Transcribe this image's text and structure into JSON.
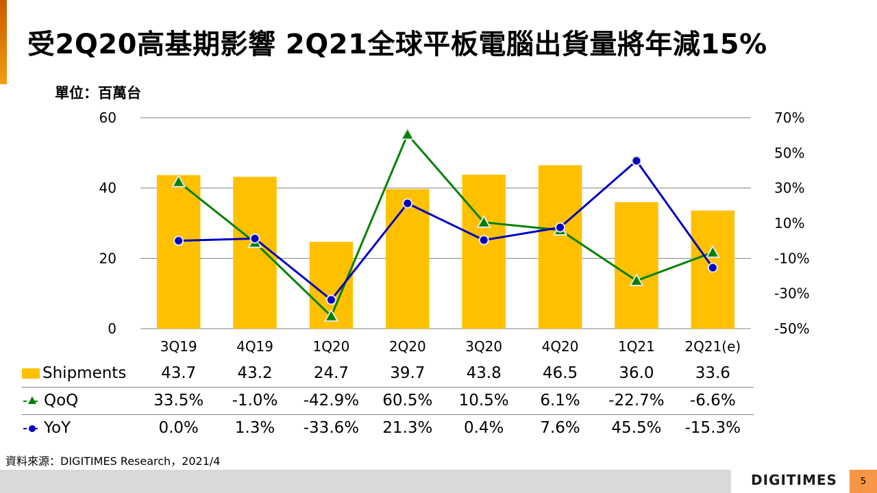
{
  "slide": {
    "title": "受2Q20高基期影響  2Q21全球平板電腦出貨量將年減15%",
    "unit_label": "單位：百萬台",
    "source": "資料來源：DIGITIMES Research，2021/4",
    "logo": "DIGITIMES",
    "page_number": "5"
  },
  "colors": {
    "bar": "#ffc000",
    "qoq": "#008000",
    "yoy": "#0000c0",
    "accent": "#f79646",
    "gridline": "#808080"
  },
  "chart_data": {
    "type": "bar",
    "title": "受2Q20高基期影響  2Q21全球平板電腦出貨量將年減15%",
    "ylabel": "單位：百萬台",
    "categories": [
      "3Q19",
      "4Q19",
      "1Q20",
      "2Q20",
      "3Q20",
      "4Q20",
      "1Q21",
      "2Q21(e)"
    ],
    "series": [
      {
        "name": "Shipments",
        "type": "bar",
        "axis": "left",
        "values": [
          43.7,
          43.2,
          24.7,
          39.7,
          43.8,
          46.5,
          36.0,
          33.6
        ],
        "labels": [
          "43.7",
          "43.2",
          "24.7",
          "39.7",
          "43.8",
          "46.5",
          "36.0",
          "33.6"
        ]
      },
      {
        "name": "QoQ",
        "type": "line",
        "axis": "right",
        "marker": "triangle",
        "values": [
          33.5,
          -1.0,
          -42.9,
          60.5,
          10.5,
          6.1,
          -22.7,
          -6.6
        ],
        "labels": [
          "33.5%",
          "-1.0%",
          "-42.9%",
          "60.5%",
          "10.5%",
          "6.1%",
          "-22.7%",
          "-6.6%"
        ]
      },
      {
        "name": "YoY",
        "type": "line",
        "axis": "right",
        "marker": "circle",
        "values": [
          0.0,
          1.3,
          -33.6,
          21.3,
          0.4,
          7.6,
          45.5,
          -15.3
        ],
        "labels": [
          "0.0%",
          "1.3%",
          "-33.6%",
          "21.3%",
          "0.4%",
          "7.6%",
          "45.5%",
          "-15.3%"
        ]
      }
    ],
    "left_axis": {
      "ylim": [
        0,
        60
      ],
      "ticks": [
        0,
        20,
        40,
        60
      ],
      "tick_labels": [
        "0",
        "20",
        "40",
        "60"
      ]
    },
    "right_axis": {
      "ylim": [
        -50,
        70
      ],
      "ticks": [
        -50,
        -30,
        -10,
        10,
        30,
        50,
        70
      ],
      "tick_labels": [
        "-50%",
        "-30%",
        "-10%",
        "10%",
        "30%",
        "50%",
        "70%"
      ]
    },
    "grid": true,
    "legend": "data-table-below"
  }
}
